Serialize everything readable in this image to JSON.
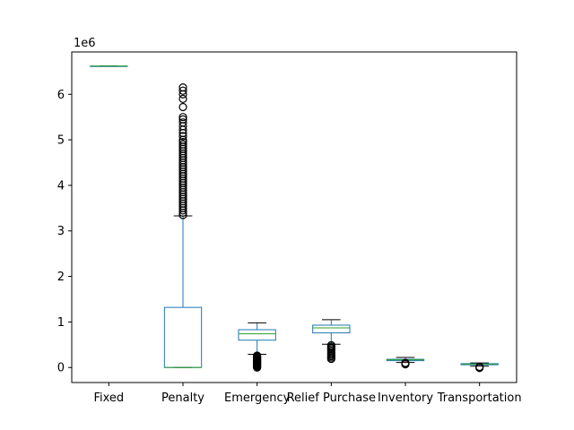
{
  "chart_data": {
    "type": "box",
    "title": "",
    "xlabel": "",
    "ylabel": "",
    "y_offset_text": "1e6",
    "y_multiplier": 1000000,
    "ylim": [
      -330000,
      6930000
    ],
    "yticks": [
      0,
      1,
      2,
      3,
      4,
      5,
      6
    ],
    "grid": false,
    "colors": {
      "box": "#1f77b4",
      "median": "#2ca02c",
      "whisker": "#000000",
      "flier": "#000000"
    },
    "categories": [
      "Fixed",
      "Penalty",
      "Emergency",
      "Relief Purchase",
      "Inventory",
      "Transportation"
    ],
    "boxes": [
      {
        "category": "Fixed",
        "whisker_low": 6620000,
        "q1": 6620000,
        "median": 6620000,
        "q3": 6620000,
        "whisker_high": 6620000,
        "fliers": []
      },
      {
        "category": "Penalty",
        "whisker_low": 0,
        "q1": 0,
        "median": 0,
        "q3": 1320000,
        "whisker_high": 3330000,
        "fliers": [
          3350000,
          3400000,
          3450000,
          3500000,
          3550000,
          3600000,
          3650000,
          3700000,
          3750000,
          3800000,
          3850000,
          3900000,
          3950000,
          4000000,
          4050000,
          4100000,
          4150000,
          4200000,
          4250000,
          4300000,
          4350000,
          4400000,
          4450000,
          4500000,
          4550000,
          4600000,
          4650000,
          4700000,
          4750000,
          4800000,
          4850000,
          4900000,
          4950000,
          5000000,
          5080000,
          5150000,
          5220000,
          5300000,
          5380000,
          5450000,
          5500000,
          5720000,
          5900000,
          6000000,
          6080000,
          6150000
        ]
      },
      {
        "category": "Emergency",
        "whisker_low": 290000,
        "q1": 600000,
        "median": 740000,
        "q3": 830000,
        "whisker_high": 980000,
        "fliers": [
          0,
          20000,
          40000,
          60000,
          80000,
          100000,
          120000,
          140000,
          160000,
          180000,
          200000,
          220000,
          240000,
          260000
        ]
      },
      {
        "category": "Relief Purchase",
        "whisker_low": 510000,
        "q1": 760000,
        "median": 870000,
        "q3": 930000,
        "whisker_high": 1050000,
        "fliers": [
          190000,
          220000,
          250000,
          280000,
          310000,
          340000,
          370000,
          400000,
          430000,
          460000,
          490000
        ]
      },
      {
        "category": "Inventory",
        "whisker_low": 110000,
        "q1": 150000,
        "median": 170000,
        "q3": 180000,
        "whisker_high": 220000,
        "fliers": [
          70000,
          90000,
          100000
        ]
      },
      {
        "category": "Transportation",
        "whisker_low": 30000,
        "q1": 60000,
        "median": 75000,
        "q3": 85000,
        "whisker_high": 100000,
        "fliers": [
          -10000,
          5000,
          15000
        ]
      }
    ]
  }
}
